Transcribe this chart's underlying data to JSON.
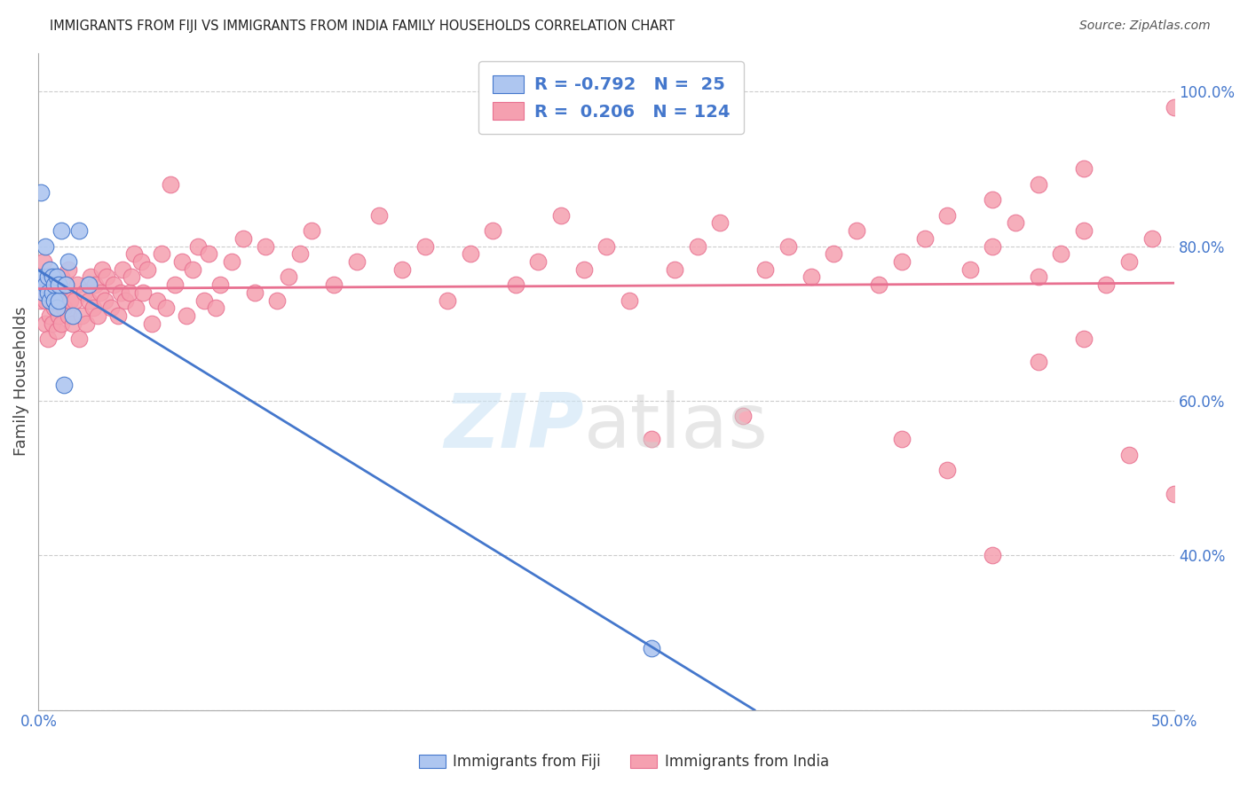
{
  "title": "IMMIGRANTS FROM FIJI VS IMMIGRANTS FROM INDIA FAMILY HOUSEHOLDS CORRELATION CHART",
  "source": "Source: ZipAtlas.com",
  "ylabel": "Family Households",
  "xlim": [
    0.0,
    0.5
  ],
  "ylim": [
    0.2,
    1.05
  ],
  "grid_color": "#cccccc",
  "background_color": "#ffffff",
  "fiji_color": "#aec6f0",
  "india_color": "#f5a0b0",
  "fiji_line_color": "#4477cc",
  "india_line_color": "#e87090",
  "fiji_R": -0.792,
  "fiji_N": 25,
  "india_R": 0.206,
  "india_N": 124,
  "fiji_scatter_x": [
    0.001,
    0.002,
    0.002,
    0.003,
    0.003,
    0.004,
    0.004,
    0.005,
    0.005,
    0.006,
    0.006,
    0.007,
    0.007,
    0.008,
    0.008,
    0.009,
    0.009,
    0.01,
    0.011,
    0.012,
    0.013,
    0.015,
    0.018,
    0.022,
    0.27
  ],
  "fiji_scatter_y": [
    0.87,
    0.76,
    0.74,
    0.8,
    0.75,
    0.76,
    0.74,
    0.77,
    0.73,
    0.76,
    0.74,
    0.73,
    0.75,
    0.72,
    0.76,
    0.73,
    0.75,
    0.82,
    0.62,
    0.75,
    0.78,
    0.71,
    0.82,
    0.75,
    0.28
  ],
  "india_scatter_x": [
    0.001,
    0.002,
    0.002,
    0.003,
    0.003,
    0.004,
    0.004,
    0.005,
    0.005,
    0.006,
    0.006,
    0.007,
    0.007,
    0.008,
    0.008,
    0.009,
    0.009,
    0.01,
    0.01,
    0.011,
    0.011,
    0.012,
    0.013,
    0.013,
    0.014,
    0.015,
    0.016,
    0.017,
    0.018,
    0.019,
    0.02,
    0.021,
    0.022,
    0.023,
    0.024,
    0.025,
    0.026,
    0.027,
    0.028,
    0.029,
    0.03,
    0.032,
    0.033,
    0.035,
    0.036,
    0.037,
    0.038,
    0.04,
    0.041,
    0.042,
    0.043,
    0.045,
    0.046,
    0.048,
    0.05,
    0.052,
    0.054,
    0.056,
    0.058,
    0.06,
    0.063,
    0.065,
    0.068,
    0.07,
    0.073,
    0.075,
    0.078,
    0.08,
    0.085,
    0.09,
    0.095,
    0.1,
    0.105,
    0.11,
    0.115,
    0.12,
    0.13,
    0.14,
    0.15,
    0.16,
    0.17,
    0.18,
    0.19,
    0.2,
    0.21,
    0.22,
    0.23,
    0.24,
    0.25,
    0.26,
    0.27,
    0.28,
    0.29,
    0.3,
    0.31,
    0.32,
    0.33,
    0.34,
    0.35,
    0.36,
    0.37,
    0.38,
    0.39,
    0.4,
    0.41,
    0.42,
    0.43,
    0.44,
    0.45,
    0.46,
    0.47,
    0.48,
    0.49,
    0.5,
    0.38,
    0.4,
    0.42,
    0.44,
    0.46,
    0.48,
    0.5,
    0.42,
    0.44,
    0.46
  ],
  "india_scatter_y": [
    0.73,
    0.75,
    0.78,
    0.7,
    0.73,
    0.68,
    0.76,
    0.71,
    0.74,
    0.7,
    0.73,
    0.72,
    0.75,
    0.69,
    0.76,
    0.71,
    0.74,
    0.7,
    0.76,
    0.72,
    0.75,
    0.75,
    0.71,
    0.77,
    0.73,
    0.7,
    0.73,
    0.75,
    0.68,
    0.71,
    0.74,
    0.7,
    0.73,
    0.76,
    0.72,
    0.75,
    0.71,
    0.74,
    0.77,
    0.73,
    0.76,
    0.72,
    0.75,
    0.71,
    0.74,
    0.77,
    0.73,
    0.74,
    0.76,
    0.79,
    0.72,
    0.78,
    0.74,
    0.77,
    0.7,
    0.73,
    0.79,
    0.72,
    0.88,
    0.75,
    0.78,
    0.71,
    0.77,
    0.8,
    0.73,
    0.79,
    0.72,
    0.75,
    0.78,
    0.81,
    0.74,
    0.8,
    0.73,
    0.76,
    0.79,
    0.82,
    0.75,
    0.78,
    0.84,
    0.77,
    0.8,
    0.73,
    0.79,
    0.82,
    0.75,
    0.78,
    0.84,
    0.77,
    0.8,
    0.73,
    0.55,
    0.77,
    0.8,
    0.83,
    0.58,
    0.77,
    0.8,
    0.76,
    0.79,
    0.82,
    0.75,
    0.78,
    0.81,
    0.84,
    0.77,
    0.8,
    0.83,
    0.76,
    0.79,
    0.82,
    0.75,
    0.78,
    0.81,
    0.98,
    0.55,
    0.51,
    0.4,
    0.65,
    0.68,
    0.53,
    0.48,
    0.86,
    0.88,
    0.9
  ]
}
